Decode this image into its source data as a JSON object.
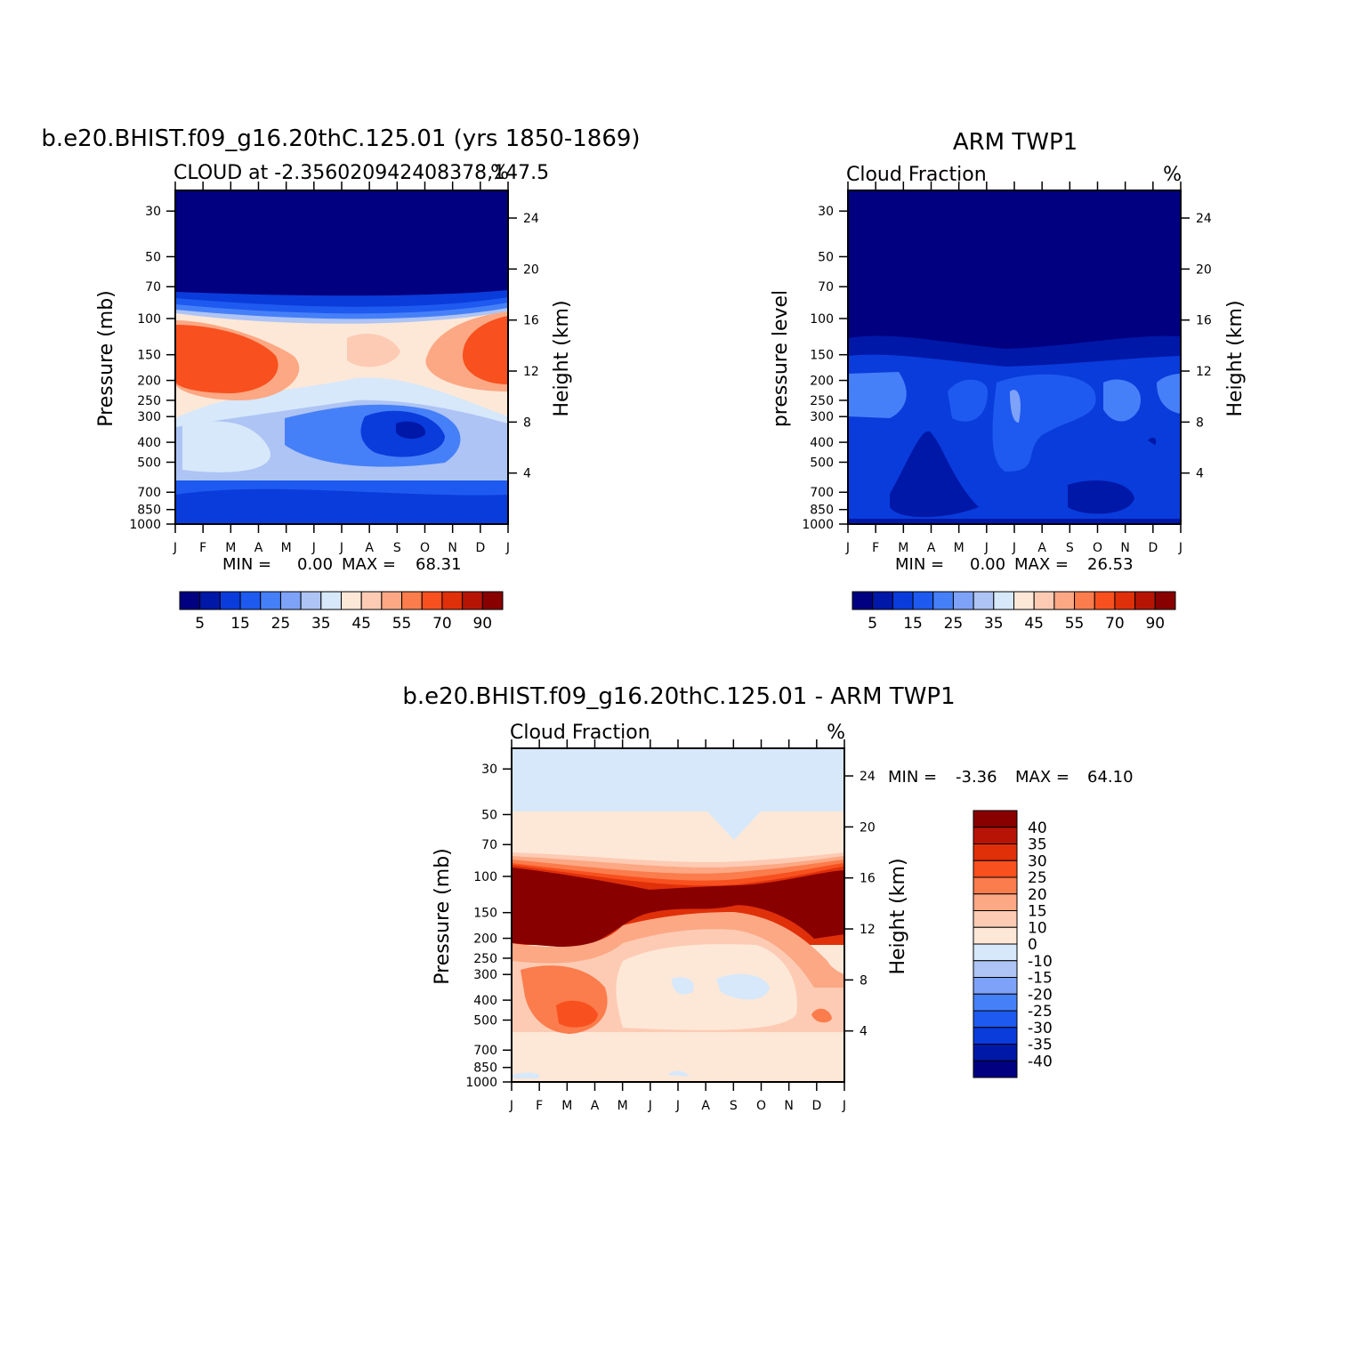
{
  "chart_data": [
    {
      "type": "heatmap",
      "title": "b.e20.BHIST.f09_g16.20thC.125.01 (yrs 1850-1869)",
      "subtitle_left": "CLOUD at -2.356020942408378,147.5",
      "subtitle_right": "%",
      "ylabel": "Pressure (mb)",
      "y2label": "Height (km)",
      "x_ticks": [
        "J",
        "F",
        "M",
        "A",
        "M",
        "J",
        "J",
        "A",
        "S",
        "O",
        "N",
        "D",
        "J"
      ],
      "y_ticks": [
        "30",
        "50",
        "70",
        "100",
        "150",
        "200",
        "250",
        "300",
        "400",
        "500",
        "700",
        "850",
        "1000"
      ],
      "y2_ticks": [
        "24",
        "20",
        "16",
        "12",
        "8",
        "4"
      ],
      "min_label": "MIN =",
      "min_value": "0.00",
      "max_label": "MAX =",
      "max_value": "68.31",
      "colorbar_labels": [
        "5",
        "15",
        "25",
        "35",
        "45",
        "55",
        "70",
        "90"
      ]
    },
    {
      "type": "heatmap",
      "title": "ARM TWP1",
      "subtitle_left": "Cloud Fraction",
      "subtitle_right": "%",
      "ylabel": "pressure level",
      "y2label": "Height (km)",
      "x_ticks": [
        "J",
        "F",
        "M",
        "A",
        "M",
        "J",
        "J",
        "A",
        "S",
        "O",
        "N",
        "D",
        "J"
      ],
      "y_ticks": [
        "30",
        "50",
        "70",
        "100",
        "150",
        "200",
        "250",
        "300",
        "400",
        "500",
        "700",
        "850",
        "1000"
      ],
      "y2_ticks": [
        "24",
        "20",
        "16",
        "12",
        "8",
        "4"
      ],
      "min_label": "MIN =",
      "min_value": "0.00",
      "max_label": "MAX =",
      "max_value": "26.53",
      "colorbar_labels": [
        "5",
        "15",
        "25",
        "35",
        "45",
        "55",
        "70",
        "90"
      ]
    },
    {
      "type": "heatmap",
      "title": "b.e20.BHIST.f09_g16.20thC.125.01 - ARM TWP1",
      "subtitle_left": "Cloud Fraction",
      "subtitle_right": "%",
      "ylabel": "Pressure (mb)",
      "y2label": "Height (km)",
      "x_ticks": [
        "J",
        "F",
        "M",
        "A",
        "M",
        "J",
        "J",
        "A",
        "S",
        "O",
        "N",
        "D",
        "J"
      ],
      "y_ticks": [
        "30",
        "50",
        "70",
        "100",
        "150",
        "200",
        "250",
        "300",
        "400",
        "500",
        "700",
        "850",
        "1000"
      ],
      "y2_ticks": [
        "24",
        "20",
        "16",
        "12",
        "8",
        "4"
      ],
      "min_label": "MIN =",
      "min_value": "-3.36",
      "max_label": "MAX =",
      "max_value": "64.10",
      "colorbar_labels": [
        "40",
        "35",
        "30",
        "25",
        "20",
        "15",
        "10",
        "0",
        "-10",
        "-15",
        "-20",
        "-25",
        "-30",
        "-35",
        "-40"
      ]
    }
  ],
  "colors": {
    "seq_palette": [
      "#000080",
      "#0018a8",
      "#0a3cdc",
      "#1e5af0",
      "#4680f8",
      "#7ea2f8",
      "#aec4f4",
      "#d6e8fa",
      "#fde8d8",
      "#fdcbb4",
      "#fca884",
      "#fb7c4c",
      "#f8501e",
      "#e0300a",
      "#b81406",
      "#880000"
    ],
    "diff_palette": [
      "#000080",
      "#0018a8",
      "#0a3cdc",
      "#1e5af0",
      "#4680f8",
      "#7ea2f8",
      "#aec4f4",
      "#d6e8fa",
      "#fde8d8",
      "#fdcbb4",
      "#fca884",
      "#fb7c4c",
      "#f8501e",
      "#e0300a",
      "#b81406",
      "#880000"
    ]
  }
}
